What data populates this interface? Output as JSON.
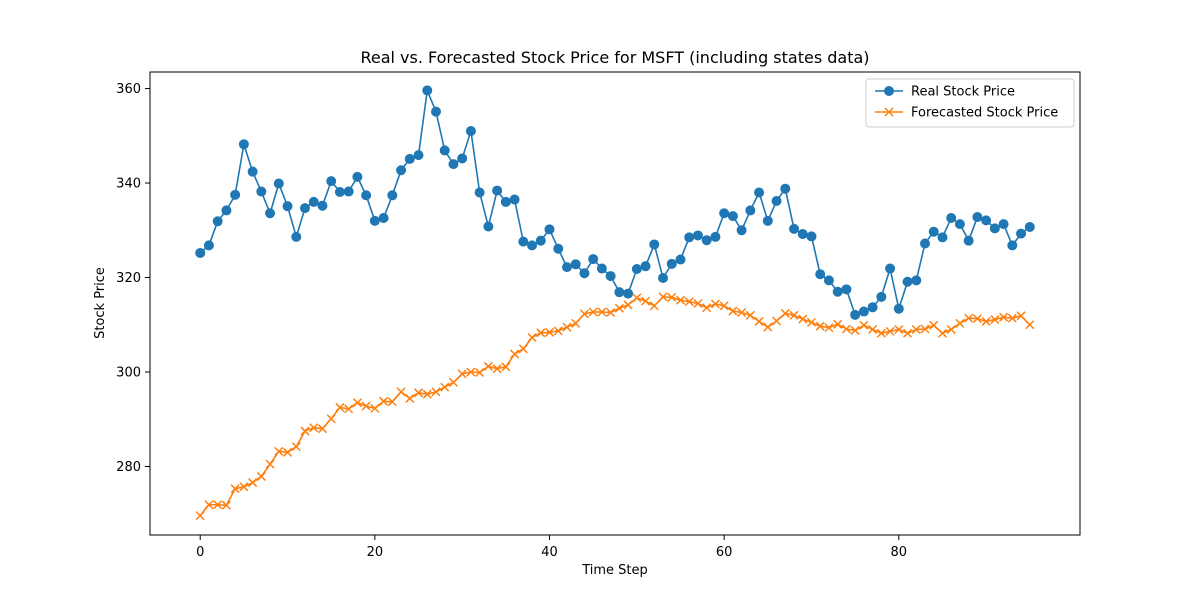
{
  "chart_data": {
    "type": "line",
    "title": "Real vs. Forecasted Stock Price for MSFT (including states data)",
    "xlabel": "Time Step",
    "ylabel": "Stock Price",
    "xlim": [
      -5.75,
      100.75
    ],
    "ylim": [
      265.5,
      363.5
    ],
    "x_ticks": [
      0,
      20,
      40,
      60,
      80
    ],
    "y_ticks": [
      280,
      300,
      320,
      340,
      360
    ],
    "grid": false,
    "legend_position": "upper right",
    "series": [
      {
        "name": "Real Stock Price",
        "color": "#1f77b4",
        "marker": "circle",
        "values": [
          325.2,
          326.8,
          331.9,
          334.2,
          337.5,
          348.2,
          342.4,
          338.2,
          333.6,
          339.9,
          335.1,
          328.6,
          334.7,
          336.0,
          335.2,
          340.4,
          338.1,
          338.2,
          341.3,
          337.4,
          332.0,
          332.6,
          337.4,
          342.7,
          345.1,
          345.9,
          359.6,
          355.1,
          346.9,
          344.0,
          345.2,
          351.0,
          338.0,
          330.8,
          338.4,
          336.0,
          336.5,
          327.6,
          326.8,
          327.8,
          330.2,
          326.1,
          322.2,
          322.8,
          320.9,
          323.9,
          321.9,
          320.3,
          316.9,
          316.6,
          321.8,
          322.4,
          327.0,
          319.9,
          322.9,
          323.8,
          328.5,
          328.9,
          327.9,
          328.6,
          333.6,
          333.0,
          330.0,
          334.2,
          338.0,
          332.0,
          336.2,
          338.8,
          330.3,
          329.2,
          328.7,
          320.7,
          319.4,
          317.0,
          317.5,
          312.1,
          312.8,
          313.7,
          315.9,
          321.9,
          313.4,
          319.1,
          319.4,
          327.2,
          329.7,
          328.5,
          332.6,
          331.3,
          327.8,
          332.8,
          332.1,
          330.4,
          331.3,
          326.8,
          329.3,
          330.7
        ]
      },
      {
        "name": "Forecasted Stock Price",
        "color": "#ff7f0e",
        "marker": "x",
        "values": [
          269.6,
          271.9,
          271.9,
          271.8,
          275.3,
          275.7,
          276.6,
          277.9,
          280.5,
          283.2,
          283.0,
          284.2,
          287.5,
          288.2,
          288.0,
          290.1,
          292.5,
          292.2,
          293.5,
          292.8,
          292.3,
          293.8,
          293.7,
          295.8,
          294.4,
          295.6,
          295.3,
          295.8,
          296.8,
          297.8,
          299.6,
          300.0,
          299.9,
          301.2,
          300.7,
          301.1,
          303.8,
          304.9,
          307.3,
          308.3,
          308.4,
          308.7,
          309.5,
          310.3,
          312.3,
          312.7,
          312.7,
          312.6,
          313.5,
          314.2,
          315.7,
          315.0,
          314.0,
          315.9,
          315.8,
          315.2,
          314.9,
          314.5,
          313.6,
          314.4,
          314.0,
          312.9,
          312.6,
          312.0,
          310.7,
          309.5,
          310.8,
          312.4,
          312.0,
          311.2,
          310.5,
          309.7,
          309.4,
          310.1,
          309.1,
          308.8,
          309.9,
          309.0,
          308.2,
          308.6,
          309.0,
          308.2,
          309.0,
          309.1,
          309.9,
          308.2,
          309.0,
          310.3,
          311.4,
          311.3,
          310.7,
          311.1,
          311.6,
          311.4,
          311.9,
          310.0
        ]
      }
    ]
  }
}
